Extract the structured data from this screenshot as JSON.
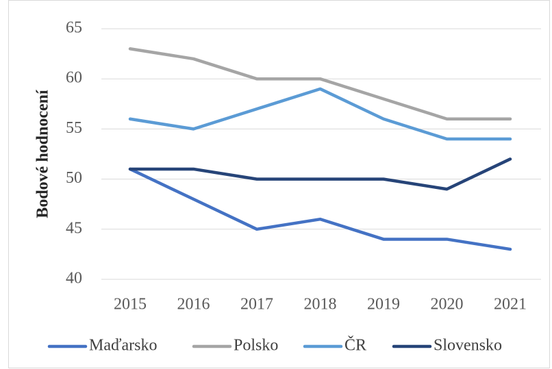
{
  "chart_data": {
    "type": "line",
    "y_label": "Bodové hodnocení",
    "categories": [
      "2015",
      "2016",
      "2017",
      "2018",
      "2019",
      "2020",
      "2021"
    ],
    "series": [
      {
        "name": "Maďarsko",
        "color": "#4472c4",
        "values": [
          51,
          48,
          45,
          46,
          44,
          44,
          43
        ]
      },
      {
        "name": "Polsko",
        "color": "#a5a5a5",
        "values": [
          63,
          62,
          60,
          60,
          58,
          56,
          56
        ]
      },
      {
        "name": "ČR",
        "color": "#5b9bd5",
        "values": [
          56,
          55,
          57,
          59,
          56,
          54,
          54
        ]
      },
      {
        "name": "Slovensko",
        "color": "#264478",
        "values": [
          51,
          51,
          50,
          50,
          50,
          49,
          52
        ]
      }
    ],
    "ylim": [
      40,
      65
    ],
    "yticks": [
      40,
      45,
      50,
      55,
      60,
      65
    ],
    "grid": true,
    "legend": "bottom"
  }
}
